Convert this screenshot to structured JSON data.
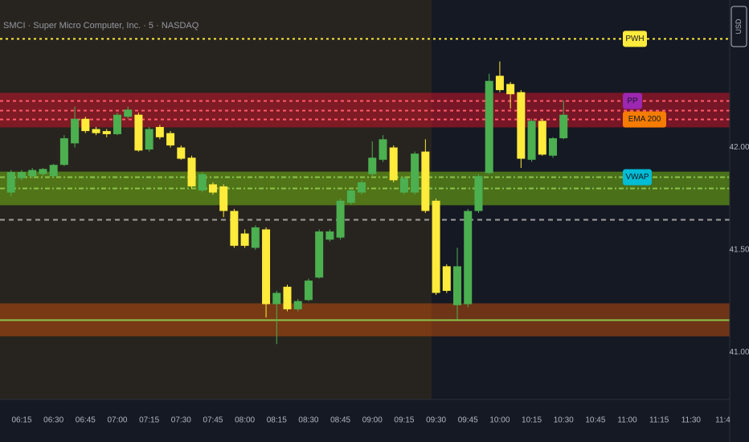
{
  "chart_data": {
    "type": "candlestick",
    "title": "SMCI · Super Micro Computer, Inc. · 5 · NASDAQ",
    "currency": "USD",
    "up_color": "#4caf50",
    "down_color": "#ffeb3b",
    "x": [
      "06:10",
      "06:15",
      "06:20",
      "06:25",
      "06:30",
      "06:35",
      "06:40",
      "06:45",
      "06:50",
      "06:55",
      "07:00",
      "07:05",
      "07:10",
      "07:15",
      "07:20",
      "07:25",
      "07:30",
      "07:35",
      "07:40",
      "07:45",
      "07:50",
      "07:55",
      "08:00",
      "08:05",
      "08:10",
      "08:15",
      "08:20",
      "08:25",
      "08:30",
      "08:35",
      "08:40",
      "08:45",
      "08:50",
      "08:55",
      "09:00",
      "09:05",
      "09:10",
      "09:15",
      "09:20",
      "09:25",
      "09:30",
      "09:35",
      "09:40",
      "09:45",
      "09:50",
      "09:55",
      "10:00",
      "10:05",
      "10:10",
      "10:15",
      "10:20",
      "10:25",
      "10:30"
    ],
    "open": [
      41.78,
      41.85,
      41.86,
      41.87,
      41.86,
      41.915,
      42.02,
      42.14,
      42.09,
      42.08,
      42.065,
      42.15,
      42.16,
      41.99,
      42.1,
      42.07,
      42.0,
      41.95,
      41.79,
      41.82,
      41.81,
      41.69,
      41.58,
      41.51,
      41.6,
      41.235,
      41.32,
      41.21,
      41.255,
      41.365,
      41.55,
      41.56,
      41.73,
      41.78,
      41.87,
      41.94,
      42.0,
      41.78,
      41.78,
      41.98,
      41.74,
      41.42,
      41.23,
      41.235,
      41.69,
      41.875,
      42.35,
      42.31,
      42.27,
      41.94,
      42.13,
      41.96,
      42.045
    ],
    "high": [
      41.89,
      41.89,
      41.9,
      41.9,
      41.92,
      42.06,
      42.2,
      42.15,
      42.1,
      42.09,
      42.17,
      42.2,
      42.17,
      42.1,
      42.11,
      42.08,
      42.01,
      41.96,
      41.88,
      41.83,
      41.82,
      41.7,
      41.6,
      41.62,
      41.61,
      41.3,
      41.33,
      41.26,
      41.36,
      41.6,
      41.6,
      41.75,
      41.8,
      41.84,
      42.03,
      42.06,
      42.01,
      41.86,
      41.98,
      42.04,
      41.75,
      41.43,
      41.51,
      41.7,
      41.87,
      42.36,
      42.42,
      42.32,
      42.28,
      42.14,
      42.14,
      42.05,
      42.23
    ],
    "low": [
      41.76,
      41.84,
      41.85,
      41.86,
      41.85,
      41.91,
      42.0,
      42.07,
      42.06,
      42.05,
      42.06,
      42.14,
      41.98,
      41.98,
      42.04,
      42.0,
      41.94,
      41.8,
      41.78,
      41.77,
      41.66,
      41.51,
      41.51,
      41.5,
      41.17,
      41.04,
      41.2,
      41.2,
      41.25,
      41.36,
      41.54,
      41.55,
      41.72,
      41.77,
      41.86,
      41.93,
      41.83,
      41.77,
      41.77,
      41.68,
      41.28,
      41.29,
      41.16,
      41.22,
      41.68,
      41.87,
      42.27,
      42.19,
      41.9,
      41.93,
      41.96,
      41.95,
      42.04
    ],
    "close": [
      41.88,
      41.88,
      41.89,
      41.895,
      41.915,
      42.045,
      42.14,
      42.08,
      42.07,
      42.065,
      42.16,
      42.185,
      41.985,
      42.09,
      42.05,
      42.01,
      41.945,
      41.81,
      41.87,
      41.78,
      41.69,
      41.52,
      41.52,
      41.61,
      41.235,
      41.29,
      41.21,
      41.25,
      41.35,
      41.59,
      41.59,
      41.74,
      41.79,
      41.83,
      41.95,
      42.04,
      41.84,
      41.85,
      41.97,
      41.69,
      41.29,
      41.3,
      41.42,
      41.69,
      41.86,
      42.325,
      42.28,
      42.26,
      41.945,
      42.13,
      41.965,
      42.045,
      42.16
    ],
    "ylim": [
      40.77,
      42.72
    ],
    "yticks": [
      {
        "value": 42,
        "label": "42.00"
      },
      {
        "value": 41.5,
        "label": "41.50"
      },
      {
        "value": 41,
        "label": "41.00"
      }
    ],
    "xticks": [
      "06:15",
      "06:30",
      "06:45",
      "07:00",
      "07:15",
      "07:30",
      "07:45",
      "08:00",
      "08:15",
      "08:30",
      "08:45",
      "09:00",
      "09:15",
      "09:30",
      "09:45",
      "10:00",
      "10:15",
      "10:30",
      "10:45",
      "11:00",
      "11:15",
      "11:30",
      "11:4"
    ],
    "bands": [
      {
        "low": 42.098,
        "high": 42.267,
        "color": "rgba(200,20,40,0.55)"
      },
      {
        "low": 41.718,
        "high": 41.882,
        "color": "rgba(110,170,20,0.6)"
      },
      {
        "low": 41.078,
        "high": 41.239,
        "color": "rgba(200,80,10,0.5)"
      }
    ],
    "levels": [
      {
        "name": "PWH",
        "value": 42.53,
        "color": "#ffeb3b",
        "dash": "3 4",
        "label_color": "#ffeb3b"
      },
      {
        "name": "PP",
        "value": 42.227,
        "color": "#ff5a6a",
        "dash": "4 4",
        "label_color": "#9c27b0"
      },
      {
        "value": 42.18,
        "color": "#ff5a6a",
        "dash": "4 4"
      },
      {
        "name": "EMA 200",
        "value": 42.137,
        "color": "#ff5a6a",
        "dash": "4 4",
        "label_color": "#f57c00"
      },
      {
        "name": "VWAP",
        "value": 41.855,
        "color": "#8bc34a",
        "dash": "6 3 2 3",
        "label_color": "#00bcd4"
      },
      {
        "value": 41.8,
        "color": "#8bc34a",
        "dash": "6 3 2 3"
      },
      {
        "value": 41.647,
        "color": "#9e9e9e",
        "dash": "6 5"
      },
      {
        "value": 41.157,
        "color": "#8bc34a",
        "dash": "none"
      }
    ]
  }
}
